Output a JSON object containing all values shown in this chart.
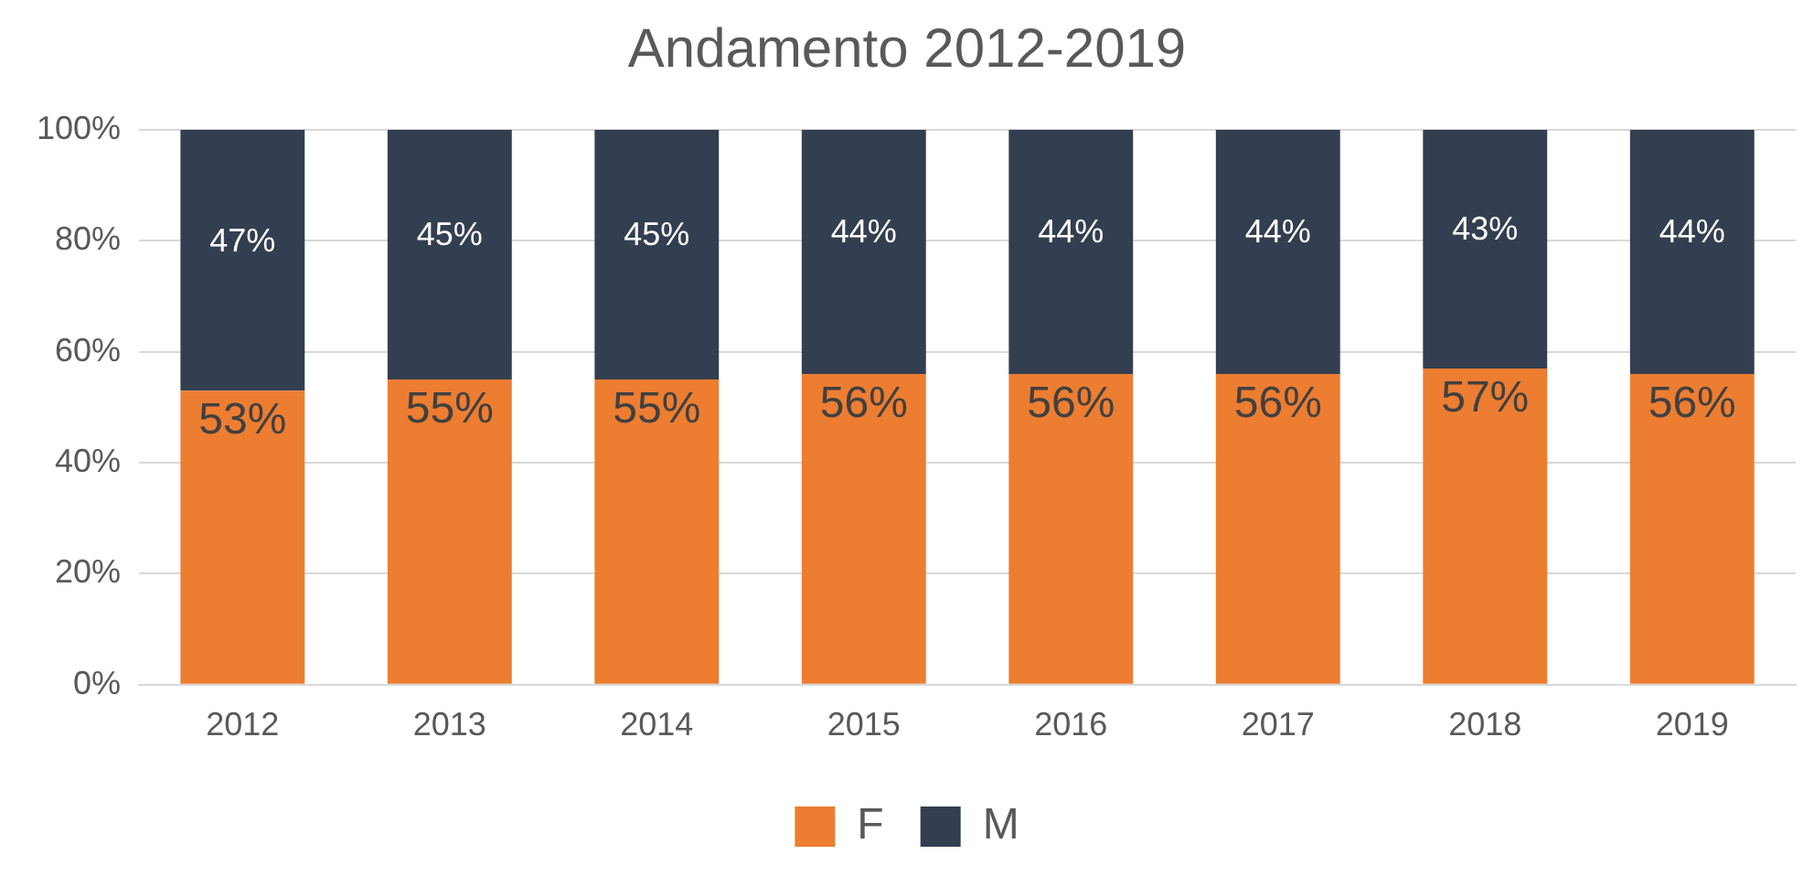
{
  "chart_data": {
    "type": "bar",
    "stacked": true,
    "title": "Andamento 2012-2019",
    "categories": [
      "2012",
      "2013",
      "2014",
      "2015",
      "2016",
      "2017",
      "2018",
      "2019"
    ],
    "series": [
      {
        "name": "F",
        "color": "#ed7d31",
        "values": [
          53,
          55,
          55,
          56,
          56,
          56,
          57,
          56
        ],
        "value_labels": [
          "53%",
          "55%",
          "55%",
          "56%",
          "56%",
          "56%",
          "57%",
          "56%"
        ]
      },
      {
        "name": "M",
        "color": "#333f50",
        "values": [
          47,
          45,
          45,
          44,
          44,
          44,
          43,
          44
        ],
        "value_labels": [
          "47%",
          "45%",
          "45%",
          "44%",
          "44%",
          "44%",
          "43%",
          "44%"
        ]
      }
    ],
    "ylim": [
      0,
      100
    ],
    "yticks": [
      {
        "value": 0,
        "label": "0%"
      },
      {
        "value": 20,
        "label": "20%"
      },
      {
        "value": 40,
        "label": "40%"
      },
      {
        "value": 60,
        "label": "60%"
      },
      {
        "value": 80,
        "label": "80%"
      },
      {
        "value": 100,
        "label": "100%"
      }
    ],
    "grid": "y",
    "legend": "bottom"
  }
}
